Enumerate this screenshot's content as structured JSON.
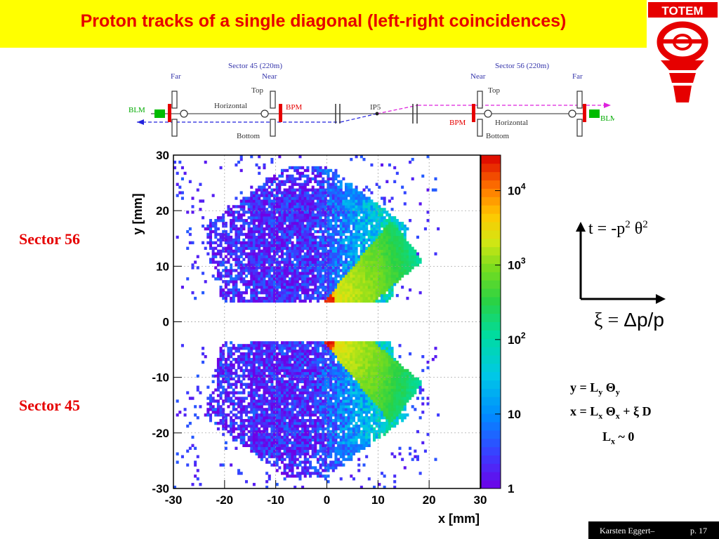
{
  "slide": {
    "title": "Proton tracks of a single diagonal (left-right coincidences)",
    "title_color": "#e60000",
    "title_bg": "#ffff00",
    "logo_text": "TOTEM"
  },
  "beamline": {
    "sector45_label": "Sector 45 (220m)",
    "sector56_label": "Sector 56 (220m)",
    "far_left": "Far",
    "near_left": "Near",
    "near_right": "Near",
    "far_right": "Far",
    "top_left": "Top",
    "top_right": "Top",
    "horizontal_left": "Horizontal",
    "horizontal_right": "Horizontal",
    "bottom_left": "Bottom",
    "bottom_right": "Bottom",
    "bpm_left": "BPM",
    "bpm_right": "BPM",
    "blm_left": "BLM",
    "blm_right": "BLM",
    "ip": "IP5"
  },
  "labels": {
    "sector56": "Sector 56",
    "sector45": "Sector 45"
  },
  "formulas": {
    "t_lhs": "t = -p",
    "t_exp1": "2",
    "t_theta": "θ",
    "t_exp2": "2",
    "xi_lhs": "ξ = ",
    "xi_rhs": "Δp/p",
    "y_eq": "y = L",
    "y_sub1": "y",
    "y_theta": " Θ",
    "y_sub2": "y",
    "x_eq": "x = L",
    "x_sub1": "x",
    "x_theta": " Θ",
    "x_sub2": "x",
    "x_tail": " + ξ D",
    "lx": "L",
    "lx_sub": "x",
    "lx_tail": " ~ 0"
  },
  "footer": {
    "author": "Karsten Eggert–",
    "page": "p. 17"
  },
  "chart_data": {
    "type": "heatmap",
    "xlabel": "x [mm]",
    "ylabel": "y [mm]",
    "xlim": [
      -30,
      30
    ],
    "ylim": [
      -30,
      30
    ],
    "xticks": [
      -30,
      -20,
      -10,
      0,
      10,
      20,
      30
    ],
    "yticks": [
      -30,
      -20,
      -10,
      0,
      10,
      20,
      30
    ],
    "color_scale": "log",
    "zlim": [
      1,
      30000
    ],
    "colorbar_ticks": [
      {
        "base": "1",
        "exp": "",
        "value": 1
      },
      {
        "base": "10",
        "exp": "",
        "value": 10
      },
      {
        "base": "10",
        "exp": "2",
        "value": 100
      },
      {
        "base": "10",
        "exp": "3",
        "value": 1000
      },
      {
        "base": "10",
        "exp": "4",
        "value": 10000
      }
    ],
    "regions": [
      {
        "detector": "top",
        "y_range": [
          3.5,
          30
        ],
        "peak": {
          "x": 0,
          "y": 4,
          "counts": 20000
        }
      },
      {
        "detector": "bottom",
        "y_range": [
          -30,
          -3.5
        ],
        "peak": {
          "x": 0,
          "y": -4,
          "counts": 20000
        }
      }
    ]
  }
}
